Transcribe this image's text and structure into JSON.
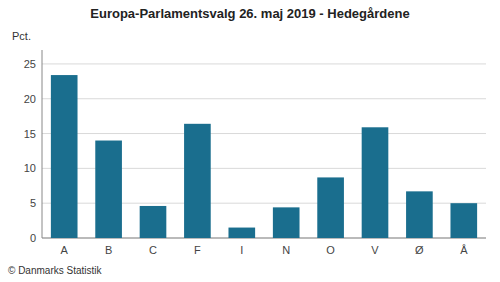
{
  "chart_data": {
    "type": "bar",
    "title": "Europa-Parlamentsvalg 26. maj 2019 - Hedegårdene",
    "ylabel": "Pct.",
    "categories": [
      "A",
      "B",
      "C",
      "F",
      "I",
      "N",
      "O",
      "V",
      "Ø",
      "Å"
    ],
    "values": [
      23.4,
      14.0,
      4.6,
      16.4,
      1.5,
      4.4,
      8.7,
      15.9,
      6.7,
      5.0
    ],
    "color": "#1a6e8e",
    "ylim": [
      0,
      27
    ],
    "yticks": [
      0,
      5,
      10,
      15,
      20,
      25
    ],
    "grid": true,
    "annotations": [
      "© Danmarks Statistik"
    ]
  }
}
